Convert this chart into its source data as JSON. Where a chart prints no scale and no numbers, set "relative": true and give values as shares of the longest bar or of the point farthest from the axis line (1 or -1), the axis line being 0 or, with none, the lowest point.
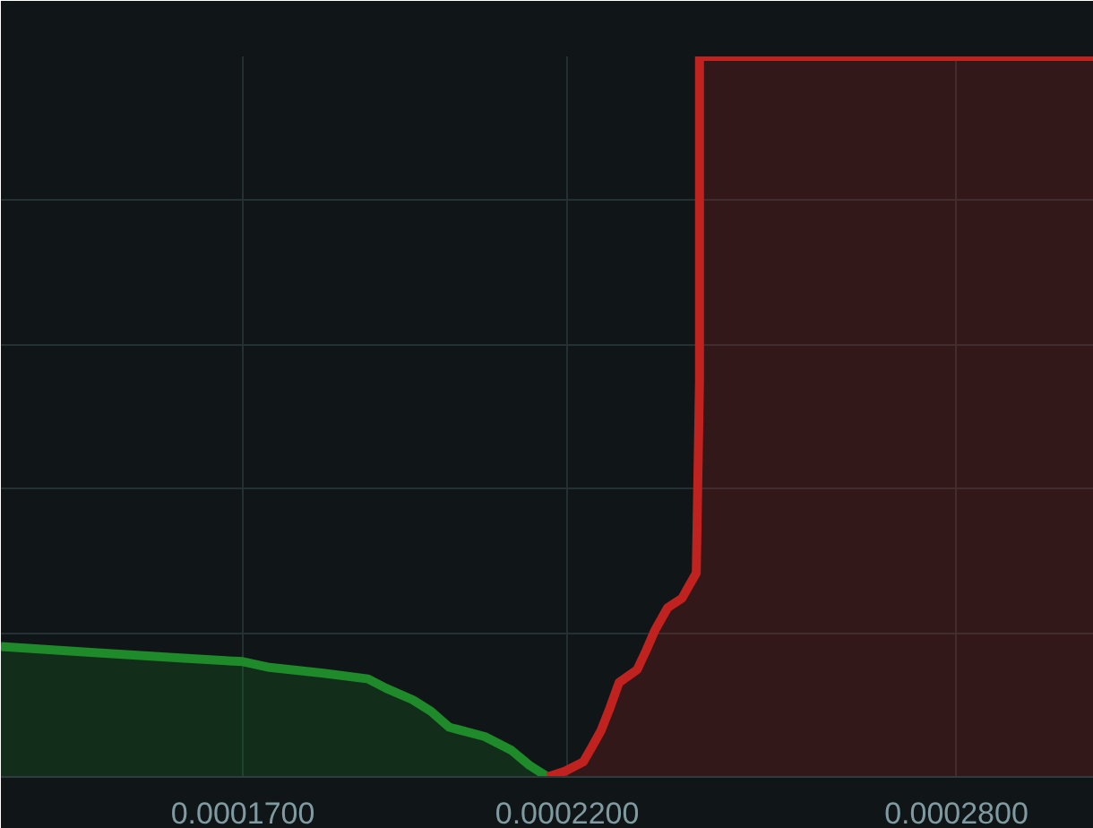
{
  "chart_data": {
    "type": "area",
    "relative": true,
    "xlim": [
      0.0001327,
      0.0003012
    ],
    "xticks": [
      {
        "value": 0.00017,
        "label": "0.0001700"
      },
      {
        "value": 0.00022,
        "label": "0.0002200"
      },
      {
        "value": 0.00028,
        "label": "0.0002800"
      }
    ],
    "grid": true,
    "series": [
      {
        "color": "#1e8a2a",
        "x": [
          0.0001327,
          0.0001465,
          0.0001603,
          0.00017,
          0.0001741,
          0.0001824,
          0.0001893,
          0.0001921,
          0.0001962,
          0.000199,
          0.0002018,
          0.0002073,
          0.0002114,
          0.0002142,
          0.000217
        ],
        "values": [
          0.181,
          0.173,
          0.165,
          0.16,
          0.152,
          0.144,
          0.136,
          0.123,
          0.107,
          0.091,
          0.069,
          0.056,
          0.037,
          0.016,
          0
        ]
      },
      {
        "color": "#c0231f",
        "x": [
          0.000217,
          0.0002197,
          0.0002225,
          0.0002239,
          0.0002252,
          0.0002266,
          0.000228,
          0.0002308,
          0.0002322,
          0.0002335,
          0.0002355,
          0.0002377,
          0.0002399,
          0.0002404,
          0.0002404,
          0.0003012
        ],
        "values": [
          0,
          0.008,
          0.021,
          0.043,
          0.064,
          0.096,
          0.131,
          0.149,
          0.176,
          0.203,
          0.235,
          0.248,
          0.283,
          0.549,
          1,
          1
        ]
      }
    ]
  }
}
